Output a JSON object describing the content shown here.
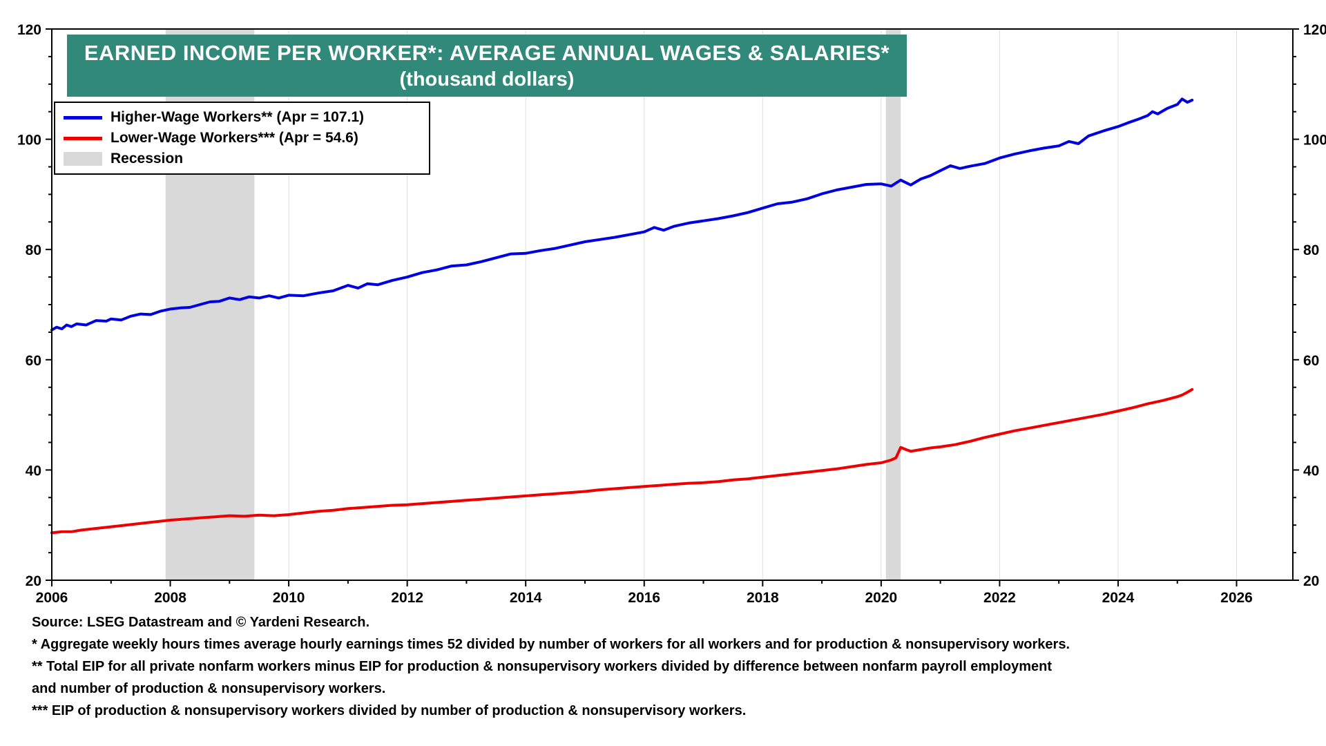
{
  "title": {
    "line1": "EARNED INCOME PER WORKER*: AVERAGE ANNUAL WAGES & SALARIES*",
    "line2": "(thousand dollars)",
    "bg_color": "#318A79"
  },
  "legend": {
    "items": [
      {
        "label": "Higher-Wage Workers** (Apr = 107.1)",
        "color": "#0000E0",
        "type": "line"
      },
      {
        "label": "Lower-Wage Workers*** (Apr = 54.6)",
        "color": "#EE0000",
        "type": "line"
      },
      {
        "label": "Recession",
        "color": "#D9D9D9",
        "type": "box"
      }
    ]
  },
  "footnotes": [
    "Source: LSEG Datastream and © Yardeni Research.",
    "* Aggregate weekly hours times average hourly earnings times 52 divided by number of workers for all workers and for production & nonsupervisory workers.",
    " ** Total EIP for all private nonfarm workers minus EIP for production & nonsupervisory workers divided by difference between nonfarm payroll employment",
    "and number of production & nonsupervisory workers.",
    "*** EIP of production & nonsupervisory workers divided by number of production & nonsupervisory workers."
  ],
  "chart_data": {
    "type": "line",
    "title": "EARNED INCOME PER WORKER*: AVERAGE ANNUAL WAGES & SALARIES* (thousand dollars)",
    "xlabel": "",
    "ylabel": "thousand dollars",
    "x_range": [
      2006,
      2026.95
    ],
    "y_range": [
      20,
      120
    ],
    "x_ticks": [
      2006,
      2008,
      2010,
      2012,
      2014,
      2016,
      2018,
      2020,
      2022,
      2024,
      2026
    ],
    "y_ticks": [
      20,
      40,
      60,
      80,
      100,
      120
    ],
    "grid": "vertical",
    "legend_position": "top-left",
    "colors": {
      "grid": "#DEDEDE",
      "recession": "#D9D9D9",
      "axis": "#000000"
    },
    "recessions": [
      [
        2007.92,
        2009.42
      ],
      [
        2020.08,
        2020.33
      ]
    ],
    "series": [
      {
        "name": "Higher-Wage Workers**",
        "color": "#0000E0",
        "latest": {
          "period": "Apr",
          "value": 107.1
        },
        "points": [
          [
            2006.0,
            65.4
          ],
          [
            2006.08,
            65.9
          ],
          [
            2006.17,
            65.6
          ],
          [
            2006.25,
            66.3
          ],
          [
            2006.33,
            66.0
          ],
          [
            2006.42,
            66.5
          ],
          [
            2006.58,
            66.3
          ],
          [
            2006.75,
            67.1
          ],
          [
            2006.92,
            67.0
          ],
          [
            2007.0,
            67.4
          ],
          [
            2007.17,
            67.2
          ],
          [
            2007.33,
            67.9
          ],
          [
            2007.5,
            68.3
          ],
          [
            2007.67,
            68.2
          ],
          [
            2007.83,
            68.8
          ],
          [
            2008.0,
            69.2
          ],
          [
            2008.17,
            69.4
          ],
          [
            2008.33,
            69.5
          ],
          [
            2008.5,
            70.0
          ],
          [
            2008.67,
            70.5
          ],
          [
            2008.83,
            70.6
          ],
          [
            2009.0,
            71.2
          ],
          [
            2009.17,
            70.9
          ],
          [
            2009.33,
            71.4
          ],
          [
            2009.5,
            71.2
          ],
          [
            2009.67,
            71.6
          ],
          [
            2009.83,
            71.2
          ],
          [
            2010.0,
            71.7
          ],
          [
            2010.25,
            71.6
          ],
          [
            2010.5,
            72.1
          ],
          [
            2010.75,
            72.5
          ],
          [
            2011.0,
            73.5
          ],
          [
            2011.17,
            73.0
          ],
          [
            2011.33,
            73.8
          ],
          [
            2011.5,
            73.6
          ],
          [
            2011.75,
            74.4
          ],
          [
            2012.0,
            75.0
          ],
          [
            2012.25,
            75.8
          ],
          [
            2012.5,
            76.3
          ],
          [
            2012.75,
            77.0
          ],
          [
            2013.0,
            77.2
          ],
          [
            2013.25,
            77.8
          ],
          [
            2013.5,
            78.5
          ],
          [
            2013.75,
            79.2
          ],
          [
            2014.0,
            79.3
          ],
          [
            2014.25,
            79.8
          ],
          [
            2014.5,
            80.2
          ],
          [
            2014.75,
            80.8
          ],
          [
            2015.0,
            81.4
          ],
          [
            2015.25,
            81.8
          ],
          [
            2015.5,
            82.2
          ],
          [
            2015.75,
            82.7
          ],
          [
            2016.0,
            83.2
          ],
          [
            2016.17,
            84.0
          ],
          [
            2016.33,
            83.5
          ],
          [
            2016.5,
            84.2
          ],
          [
            2016.75,
            84.8
          ],
          [
            2017.0,
            85.2
          ],
          [
            2017.25,
            85.6
          ],
          [
            2017.5,
            86.1
          ],
          [
            2017.75,
            86.7
          ],
          [
            2018.0,
            87.5
          ],
          [
            2018.25,
            88.3
          ],
          [
            2018.5,
            88.6
          ],
          [
            2018.75,
            89.2
          ],
          [
            2019.0,
            90.1
          ],
          [
            2019.25,
            90.8
          ],
          [
            2019.5,
            91.3
          ],
          [
            2019.75,
            91.8
          ],
          [
            2020.0,
            91.9
          ],
          [
            2020.17,
            91.5
          ],
          [
            2020.33,
            92.6
          ],
          [
            2020.5,
            91.7
          ],
          [
            2020.67,
            92.8
          ],
          [
            2020.83,
            93.4
          ],
          [
            2021.0,
            94.3
          ],
          [
            2021.17,
            95.2
          ],
          [
            2021.33,
            94.7
          ],
          [
            2021.5,
            95.1
          ],
          [
            2021.75,
            95.6
          ],
          [
            2022.0,
            96.6
          ],
          [
            2022.25,
            97.3
          ],
          [
            2022.5,
            97.9
          ],
          [
            2022.75,
            98.4
          ],
          [
            2023.0,
            98.8
          ],
          [
            2023.17,
            99.6
          ],
          [
            2023.33,
            99.2
          ],
          [
            2023.5,
            100.6
          ],
          [
            2023.75,
            101.5
          ],
          [
            2024.0,
            102.3
          ],
          [
            2024.17,
            103.0
          ],
          [
            2024.33,
            103.6
          ],
          [
            2024.5,
            104.3
          ],
          [
            2024.58,
            105.0
          ],
          [
            2024.67,
            104.6
          ],
          [
            2024.83,
            105.6
          ],
          [
            2025.0,
            106.3
          ],
          [
            2025.08,
            107.3
          ],
          [
            2025.17,
            106.7
          ],
          [
            2025.25,
            107.1
          ]
        ]
      },
      {
        "name": "Lower-Wage Workers***",
        "color": "#EE0000",
        "latest": {
          "period": "Apr",
          "value": 54.6
        },
        "points": [
          [
            2006.0,
            28.6
          ],
          [
            2006.17,
            28.8
          ],
          [
            2006.33,
            28.8
          ],
          [
            2006.5,
            29.1
          ],
          [
            2006.75,
            29.4
          ],
          [
            2007.0,
            29.7
          ],
          [
            2007.25,
            30.0
          ],
          [
            2007.5,
            30.3
          ],
          [
            2007.75,
            30.6
          ],
          [
            2008.0,
            30.9
          ],
          [
            2008.25,
            31.1
          ],
          [
            2008.5,
            31.3
          ],
          [
            2008.75,
            31.5
          ],
          [
            2009.0,
            31.7
          ],
          [
            2009.25,
            31.6
          ],
          [
            2009.5,
            31.8
          ],
          [
            2009.75,
            31.7
          ],
          [
            2010.0,
            31.9
          ],
          [
            2010.25,
            32.2
          ],
          [
            2010.5,
            32.5
          ],
          [
            2010.75,
            32.7
          ],
          [
            2011.0,
            33.0
          ],
          [
            2011.25,
            33.2
          ],
          [
            2011.5,
            33.4
          ],
          [
            2011.75,
            33.6
          ],
          [
            2012.0,
            33.7
          ],
          [
            2012.25,
            33.9
          ],
          [
            2012.5,
            34.1
          ],
          [
            2012.75,
            34.3
          ],
          [
            2013.0,
            34.5
          ],
          [
            2013.25,
            34.7
          ],
          [
            2013.5,
            34.9
          ],
          [
            2013.75,
            35.1
          ],
          [
            2014.0,
            35.3
          ],
          [
            2014.25,
            35.5
          ],
          [
            2014.5,
            35.7
          ],
          [
            2014.75,
            35.9
          ],
          [
            2015.0,
            36.1
          ],
          [
            2015.25,
            36.4
          ],
          [
            2015.5,
            36.6
          ],
          [
            2015.75,
            36.8
          ],
          [
            2016.0,
            37.0
          ],
          [
            2016.25,
            37.2
          ],
          [
            2016.5,
            37.4
          ],
          [
            2016.75,
            37.6
          ],
          [
            2017.0,
            37.7
          ],
          [
            2017.25,
            37.9
          ],
          [
            2017.5,
            38.2
          ],
          [
            2017.75,
            38.4
          ],
          [
            2018.0,
            38.7
          ],
          [
            2018.25,
            39.0
          ],
          [
            2018.5,
            39.3
          ],
          [
            2018.75,
            39.6
          ],
          [
            2019.0,
            39.9
          ],
          [
            2019.25,
            40.2
          ],
          [
            2019.5,
            40.6
          ],
          [
            2019.75,
            41.0
          ],
          [
            2020.0,
            41.3
          ],
          [
            2020.17,
            41.8
          ],
          [
            2020.25,
            42.2
          ],
          [
            2020.33,
            44.1
          ],
          [
            2020.42,
            43.7
          ],
          [
            2020.5,
            43.4
          ],
          [
            2020.67,
            43.7
          ],
          [
            2020.83,
            44.0
          ],
          [
            2021.0,
            44.2
          ],
          [
            2021.25,
            44.6
          ],
          [
            2021.5,
            45.2
          ],
          [
            2021.75,
            45.9
          ],
          [
            2022.0,
            46.5
          ],
          [
            2022.25,
            47.1
          ],
          [
            2022.5,
            47.6
          ],
          [
            2022.75,
            48.1
          ],
          [
            2023.0,
            48.6
          ],
          [
            2023.25,
            49.1
          ],
          [
            2023.5,
            49.6
          ],
          [
            2023.75,
            50.1
          ],
          [
            2024.0,
            50.7
          ],
          [
            2024.25,
            51.3
          ],
          [
            2024.5,
            52.0
          ],
          [
            2024.75,
            52.6
          ],
          [
            2025.0,
            53.3
          ],
          [
            2025.08,
            53.6
          ],
          [
            2025.17,
            54.1
          ],
          [
            2025.25,
            54.6
          ]
        ]
      }
    ]
  }
}
